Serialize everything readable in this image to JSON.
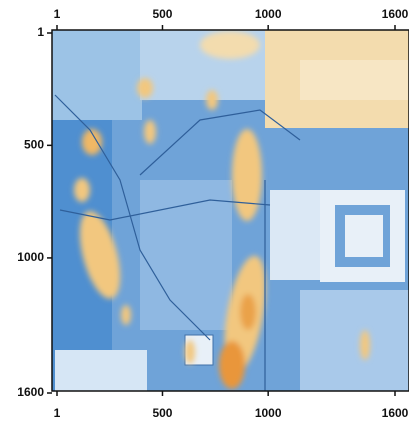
{
  "chart_data": {
    "type": "image",
    "xlim": [
      1,
      1600
    ],
    "ylim": [
      1600,
      1
    ],
    "xticks": [
      1,
      500,
      1000,
      1600
    ],
    "yticks": [
      1,
      500,
      1000,
      1600
    ]
  }
}
